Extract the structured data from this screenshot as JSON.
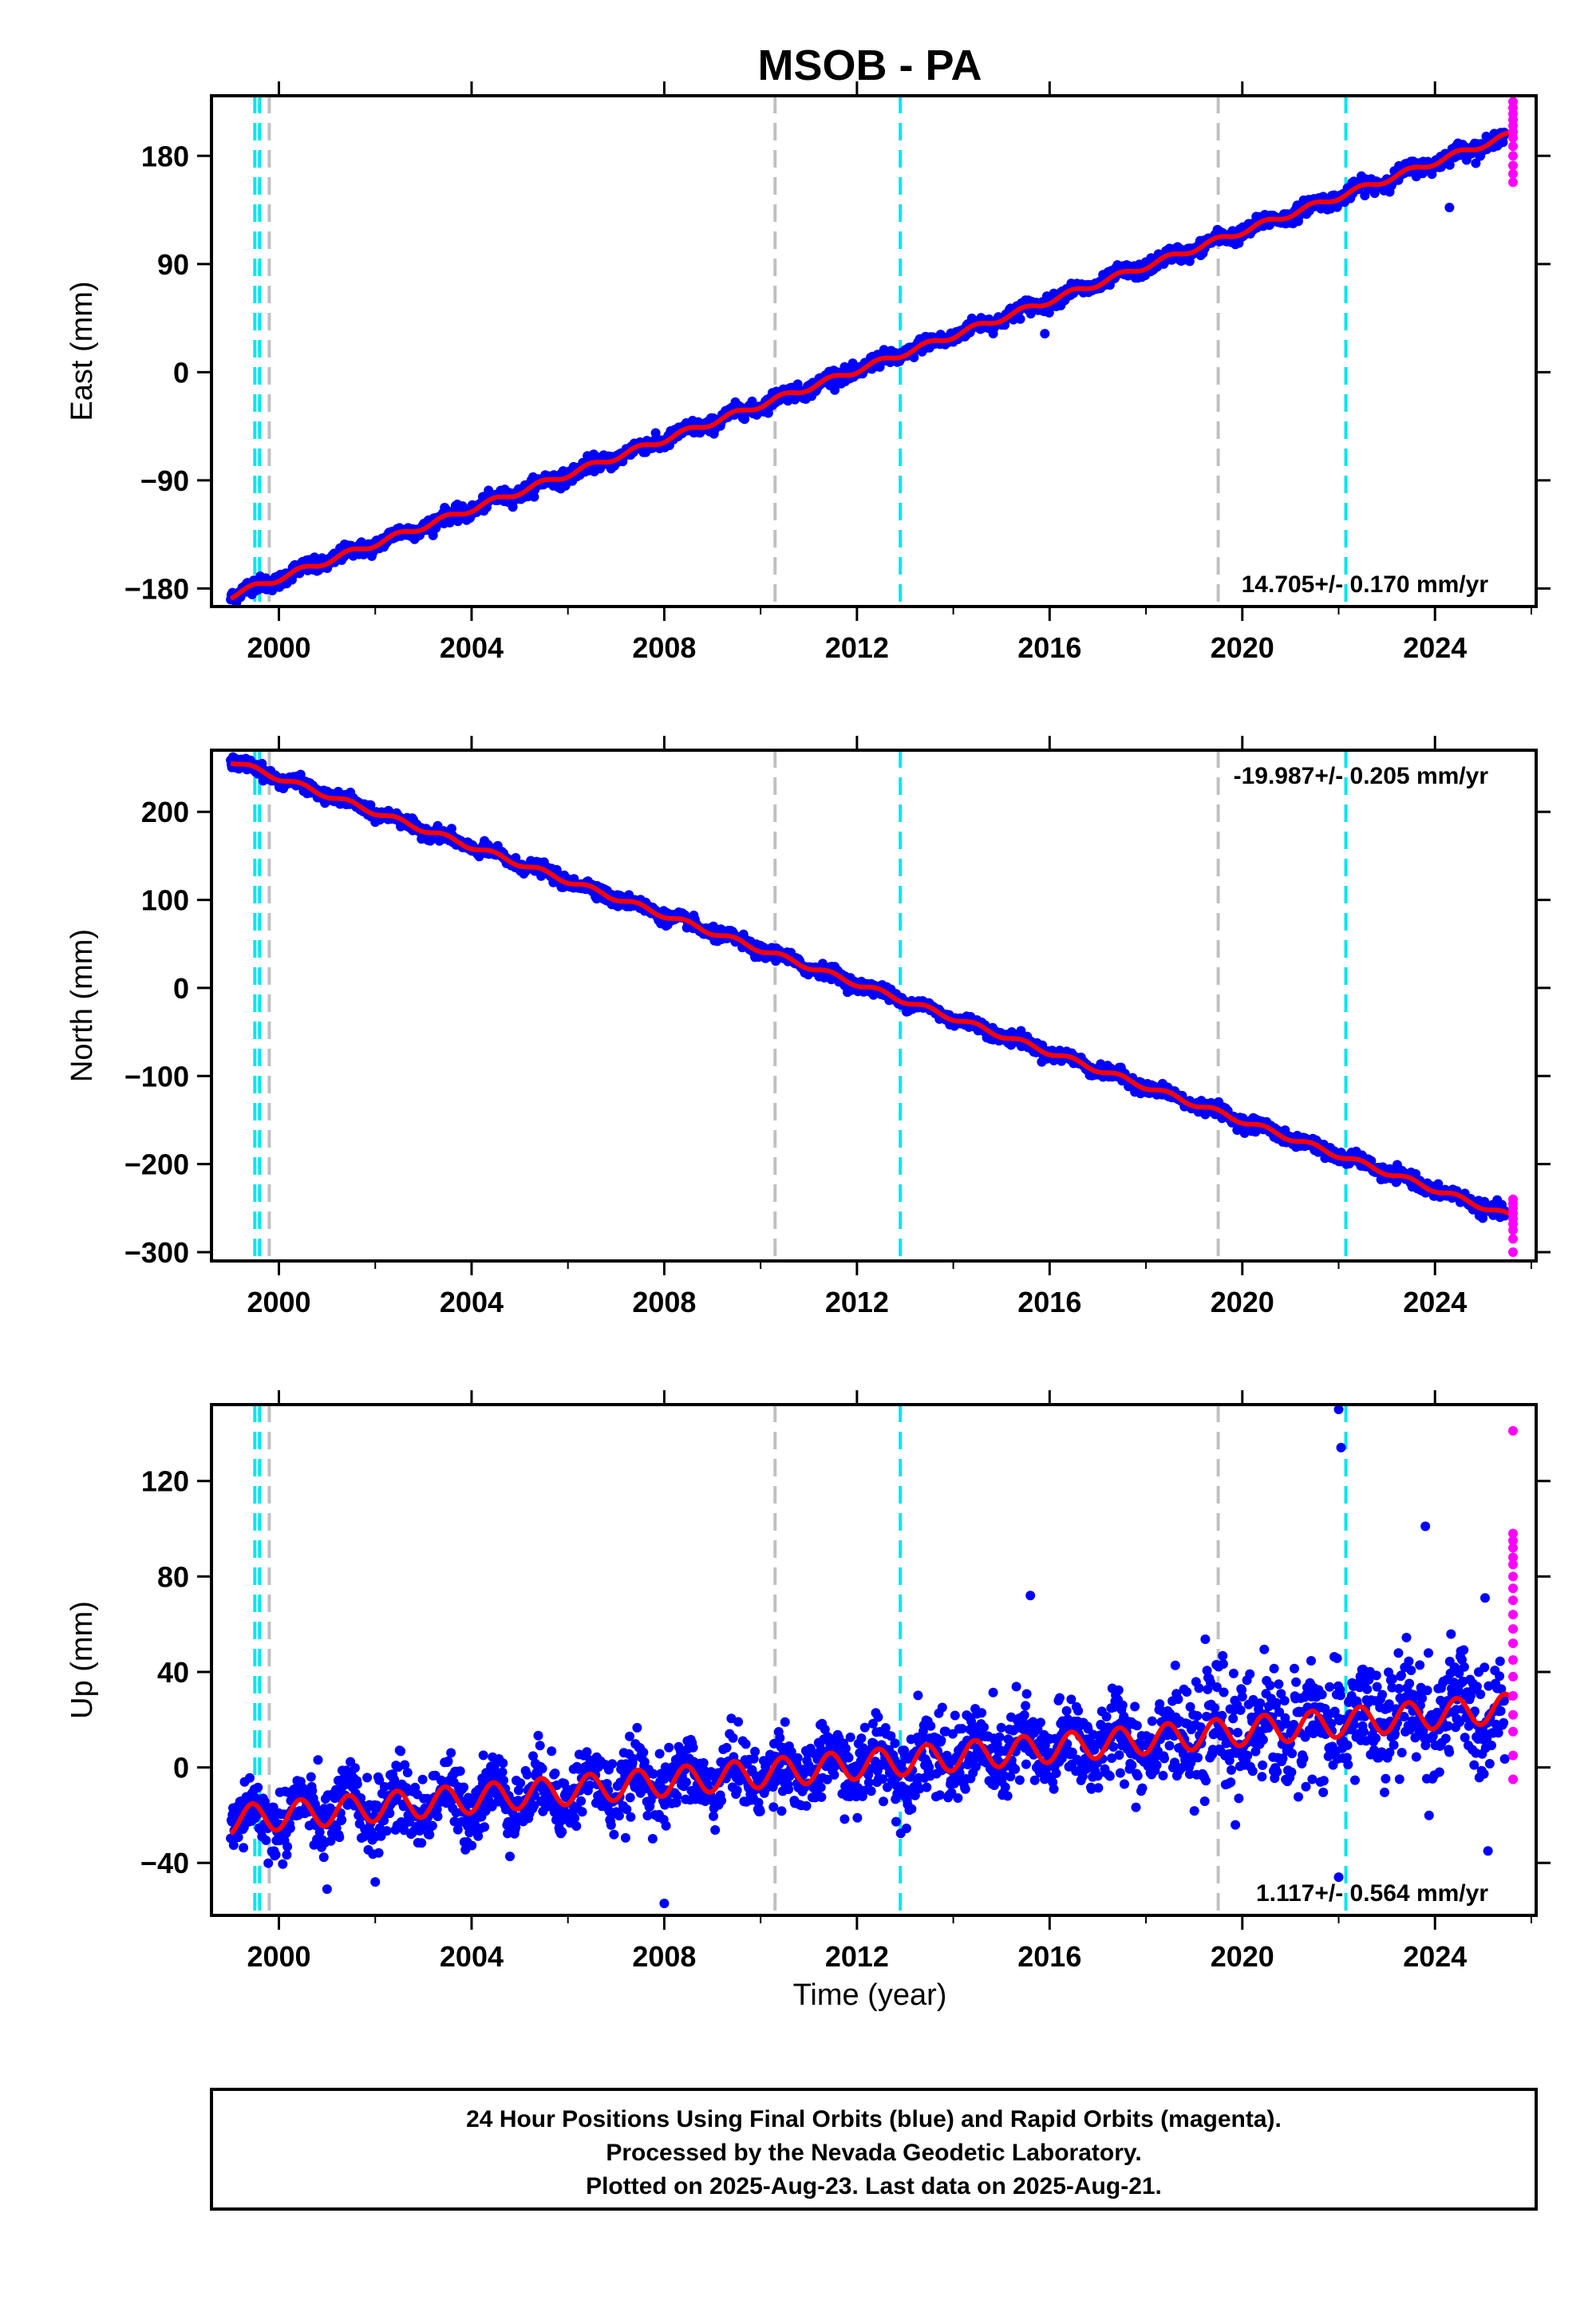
{
  "title": "MSOB - PA",
  "colors": {
    "final": "#0000ff",
    "rapid": "#ff00ff",
    "model": "#ff0000",
    "equipment_change": "#c0c0c0",
    "earthquake": "#00e5ee"
  },
  "xlabel": "Time (year)",
  "footer": {
    "line1": "24 Hour Positions Using Final Orbits (blue) and Rapid Orbits (magenta).",
    "line2": "Processed by the Nevada Geodetic Laboratory.",
    "line3": "Plotted on 2025-Aug-23. Last data on 2025-Aug-21."
  },
  "chart_data": [
    {
      "type": "scatter",
      "component": "East",
      "ylabel": "East (mm)",
      "xlim": [
        1998.6,
        2026.1
      ],
      "ylim": [
        -195,
        230
      ],
      "xticks": [
        2000,
        2004,
        2008,
        2012,
        2016,
        2020,
        2024
      ],
      "yticks": [
        -180,
        -90,
        0,
        90,
        180
      ],
      "ytick_labels": [
        "−180",
        "−90",
        "0",
        "90",
        "180"
      ],
      "rate_text": "14.705+/- 0.170 mm/yr",
      "start": {
        "year": 1999.0,
        "value": -186
      },
      "end": {
        "year": 2025.6,
        "value": 198
      },
      "seasonal_amplitude": 2.5,
      "noise": 3,
      "final_end_year": 2025.45,
      "rapid": {
        "values": [
          158,
          165,
          172,
          180,
          188,
          195,
          200,
          205,
          210,
          215,
          220,
          225
        ]
      },
      "steps": [
        {
          "year": 2019.5,
          "value": 0
        }
      ],
      "equipment_changes": [
        1999.8,
        2010.3,
        2019.5
      ],
      "earthquakes": [
        1999.5,
        1999.6,
        2012.9,
        2022.15
      ],
      "outliers": [
        {
          "x": 2024.3,
          "y": 137
        },
        {
          "x": 2015.9,
          "y": 32
        }
      ]
    },
    {
      "type": "scatter",
      "component": "North",
      "ylabel": "North (mm)",
      "xlim": [
        1998.6,
        2026.1
      ],
      "ylim": [
        -310,
        270
      ],
      "xticks": [
        2000,
        2004,
        2008,
        2012,
        2016,
        2020,
        2024
      ],
      "yticks": [
        -300,
        -200,
        -100,
        0,
        100,
        200
      ],
      "ytick_labels": [
        "−300",
        "−200",
        "−100",
        "0",
        "100",
        "200"
      ],
      "rate_text": "-19.987+/- 0.205 mm/yr",
      "start": {
        "year": 1999.0,
        "value": 258
      },
      "end": {
        "year": 2025.6,
        "value": -260
      },
      "seasonal_amplitude": 3,
      "noise": 3.5,
      "final_end_year": 2025.45,
      "rapid": {
        "values": [
          -300,
          -285,
          -275,
          -268,
          -262,
          -256,
          -250,
          -245,
          -240
        ]
      },
      "steps": [],
      "equipment_changes": [
        1999.8,
        2010.3,
        2019.5
      ],
      "earthquakes": [
        1999.5,
        1999.6,
        2012.9,
        2022.15
      ],
      "outliers": []
    },
    {
      "type": "scatter",
      "component": "Up",
      "ylabel": "Up (mm)",
      "xlim": [
        1998.6,
        2026.1
      ],
      "ylim": [
        -62,
        152
      ],
      "xticks": [
        2000,
        2004,
        2008,
        2012,
        2016,
        2020,
        2024
      ],
      "yticks": [
        -40,
        0,
        40,
        80,
        120
      ],
      "ytick_labels": [
        "−40",
        "0",
        "40",
        "80",
        "120"
      ],
      "rate_text": "1.117+/- 0.564 mm/yr",
      "start": {
        "year": 1999.0,
        "value": -22
      },
      "end": {
        "year": 2025.6,
        "value": 25
      },
      "seasonal_amplitude": 6,
      "noise": 9,
      "final_end_year": 2025.45,
      "rapid": {
        "values": [
          -5,
          5,
          15,
          22,
          30,
          38,
          45,
          52,
          58,
          64,
          70,
          75,
          80,
          85,
          88,
          92,
          95,
          98,
          141
        ]
      },
      "steps": [
        {
          "year": 2019.0,
          "value": 0
        }
      ],
      "equipment_changes": [
        1999.8,
        2010.3,
        2019.5
      ],
      "earthquakes": [
        1999.5,
        1999.6,
        2012.9,
        2022.15
      ],
      "outliers": [
        {
          "x": 2022.0,
          "y": 150
        },
        {
          "x": 2022.05,
          "y": 134
        },
        {
          "x": 2023.8,
          "y": 101
        },
        {
          "x": 2015.6,
          "y": 72
        },
        {
          "x": 2008.0,
          "y": -57
        },
        {
          "x": 2001.0,
          "y": -51
        },
        {
          "x": 2002.0,
          "y": -48
        },
        {
          "x": 2022.0,
          "y": -46
        },
        {
          "x": 2025.1,
          "y": -35
        }
      ]
    }
  ]
}
